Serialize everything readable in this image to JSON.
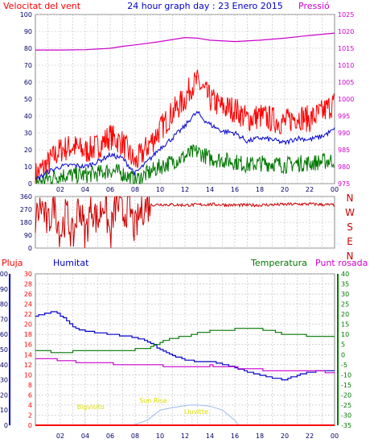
{
  "title": "24 hour graph day : 23 Enero 2015",
  "colors": {
    "wind": "#ff0000",
    "gust": "#ff0000",
    "avg": "#0000cc",
    "wdir": "#cc0000",
    "pressure": "#cc00cc",
    "humidity": "#0000cc",
    "temp": "#007700",
    "dew": "#cc00cc",
    "rain": "#ff0000",
    "solar": "#99bbee",
    "grid": "#bbbbbb",
    "tick_text": "#000066",
    "sun": "#dddd00"
  },
  "chart_data": [
    {
      "type": "line",
      "name": "wind-pressure",
      "labels": {
        "left": "Velocitat del vent",
        "right": "Pressió"
      },
      "x_ticks": [
        "02",
        "04",
        "06",
        "08",
        "10",
        "12",
        "14",
        "16",
        "18",
        "20",
        "22",
        "00"
      ],
      "y_left": {
        "min": 0,
        "max": 100,
        "ticks": [
          0,
          10,
          20,
          30,
          40,
          50,
          60,
          70,
          80,
          90,
          100
        ]
      },
      "y_right": {
        "min": 975,
        "max": 1025,
        "ticks": [
          975,
          980,
          985,
          990,
          995,
          1000,
          1005,
          1010,
          1015,
          1020,
          1025
        ]
      },
      "series": [
        {
          "key": "pressure",
          "axis": "right",
          "x": [
            0,
            2,
            4,
            6,
            7,
            8,
            10,
            12,
            13,
            14,
            16,
            18,
            20,
            22,
            24
          ],
          "y": [
            1014.5,
            1014.5,
            1014.6,
            1015,
            1015.6,
            1016,
            1017,
            1018.2,
            1018,
            1017.4,
            1017,
            1017.4,
            1018,
            1018.8,
            1019.5
          ]
        },
        {
          "key": "gust",
          "axis": "left",
          "x": [
            0,
            1,
            2,
            3,
            4,
            5,
            6,
            7,
            8,
            9,
            10,
            11,
            12,
            12.5,
            13,
            13.5,
            14,
            15,
            16,
            17,
            18,
            19,
            20,
            21,
            22,
            23,
            24
          ],
          "y": [
            5,
            12,
            20,
            22,
            19,
            22,
            28,
            24,
            12,
            22,
            32,
            42,
            50,
            58,
            60,
            55,
            50,
            45,
            44,
            38,
            40,
            38,
            36,
            40,
            38,
            42,
            48
          ]
        },
        {
          "key": "avg",
          "axis": "left",
          "x": [
            0,
            1,
            2,
            3,
            4,
            5,
            6,
            7,
            8,
            9,
            10,
            11,
            12,
            12.5,
            13,
            13.5,
            14,
            15,
            16,
            17,
            18,
            19,
            20,
            21,
            22,
            23,
            24
          ],
          "y": [
            2,
            7,
            10,
            11,
            10,
            13,
            17,
            15,
            6,
            13,
            21,
            27,
            34,
            39,
            42,
            38,
            35,
            31,
            30,
            25,
            27,
            26,
            24,
            27,
            26,
            28,
            32
          ]
        },
        {
          "key": "temp",
          "axis": "left",
          "x": [
            0,
            1,
            2,
            3,
            4,
            5,
            6,
            7,
            8,
            9,
            10,
            11,
            12,
            12.5,
            13,
            13.5,
            14,
            15,
            16,
            17,
            18,
            19,
            20,
            21,
            22,
            23,
            24
          ],
          "y": [
            1,
            3,
            5,
            5,
            5,
            6,
            8,
            6,
            2,
            6,
            10,
            13,
            16,
            18,
            19,
            17,
            15,
            14,
            13,
            11,
            12,
            12,
            11,
            12,
            12,
            13,
            14
          ]
        }
      ]
    },
    {
      "type": "scatter",
      "name": "wind-direction",
      "labels": {
        "right": [
          "N",
          "W",
          "S",
          "E",
          "N"
        ]
      },
      "y_left": {
        "min": 0,
        "max": 360,
        "ticks": [
          0,
          90,
          180,
          270,
          360
        ]
      },
      "series": [
        {
          "key": "wdir",
          "x": [
            0,
            0.5,
            1,
            1.5,
            2,
            2.5,
            3,
            3.5,
            4,
            4.5,
            5,
            5.5,
            6,
            6.5,
            7,
            7.5,
            8,
            8.5,
            9,
            10,
            12,
            14,
            16,
            18,
            20,
            22,
            24
          ],
          "y": [
            200,
            300,
            150,
            330,
            100,
            250,
            60,
            320,
            90,
            300,
            180,
            340,
            80,
            330,
            230,
            300,
            120,
            280,
            300,
            305,
            300,
            305,
            300,
            300,
            305,
            308,
            300
          ]
        }
      ]
    },
    {
      "type": "line",
      "name": "humidity-temperature",
      "labels": {
        "rain": "Pluja",
        "humidity": "Humitat",
        "temp": "Temperatura",
        "dew": "Punt rosada"
      },
      "y_left": {
        "min": 0,
        "max": 100,
        "ticks": [
          0,
          10,
          20,
          30,
          40,
          50,
          60,
          70,
          80,
          90,
          100
        ]
      },
      "y_rain": {
        "min": 0,
        "max": 30,
        "ticks": [
          0,
          2,
          4,
          6,
          8,
          10,
          12,
          14,
          16,
          18,
          20,
          22,
          24,
          26,
          28,
          30
        ]
      },
      "y_right": {
        "min": -35,
        "max": 40,
        "ticks": [
          -35,
          -30,
          -25,
          -20,
          -15,
          -10,
          -5,
          0,
          5,
          10,
          15,
          20,
          25,
          30,
          35,
          40
        ]
      },
      "annotations": [
        {
          "text": "Bigvisito",
          "x": 3.2
        },
        {
          "text": "Sun Rise",
          "x": 8.2
        },
        {
          "text": "Lluvitte",
          "x": 11.8
        }
      ],
      "series": [
        {
          "key": "humidity",
          "axis": "left",
          "x": [
            0,
            1,
            1.5,
            2,
            2.5,
            3,
            3.5,
            4,
            5,
            6,
            7,
            8,
            9,
            10,
            11,
            12,
            13,
            14,
            15,
            16,
            17,
            18,
            19,
            20,
            21,
            22,
            23,
            24
          ],
          "y": [
            72,
            74,
            75,
            72,
            69,
            65,
            63,
            62,
            61,
            60,
            59,
            58,
            55,
            50,
            46,
            43,
            42,
            42,
            40,
            38,
            35,
            33,
            31,
            30,
            33,
            35,
            36,
            36
          ]
        },
        {
          "key": "temp",
          "axis": "right",
          "x": [
            0,
            1,
            2,
            3,
            4,
            6,
            7,
            8,
            9,
            10,
            11,
            12,
            13,
            14,
            15,
            16,
            17,
            18,
            19,
            20,
            21,
            22,
            23,
            24
          ],
          "y": [
            2,
            1.5,
            1.2,
            1.5,
            2,
            2,
            2,
            2.5,
            3,
            6,
            8,
            9,
            10.5,
            11.5,
            12,
            12.5,
            12.5,
            12.5,
            11.5,
            10,
            10,
            9,
            9,
            8.5
          ]
        },
        {
          "key": "dew",
          "axis": "right",
          "x": [
            0,
            1,
            2,
            3,
            4,
            6,
            8,
            10,
            12,
            14,
            15,
            16,
            17,
            18,
            19,
            20,
            21,
            22,
            23,
            24
          ],
          "y": [
            -2,
            -2,
            -3,
            -3.5,
            -4,
            -4.5,
            -5,
            -5.5,
            -6,
            -5.5,
            -6,
            -6.5,
            -7,
            -7.5,
            -8,
            -8,
            -8.5,
            -8.5,
            -8.5,
            -9
          ]
        },
        {
          "key": "solar",
          "axis": "rain",
          "x": [
            7.8,
            9,
            10,
            11,
            12,
            12.5,
            13,
            14,
            15,
            16,
            16.3
          ],
          "y": [
            0,
            1,
            3,
            3.5,
            3.9,
            4,
            4,
            3.8,
            3,
            1,
            0
          ]
        },
        {
          "key": "rain",
          "axis": "rain",
          "x": [
            0,
            24
          ],
          "y": [
            0,
            0
          ]
        }
      ]
    }
  ]
}
